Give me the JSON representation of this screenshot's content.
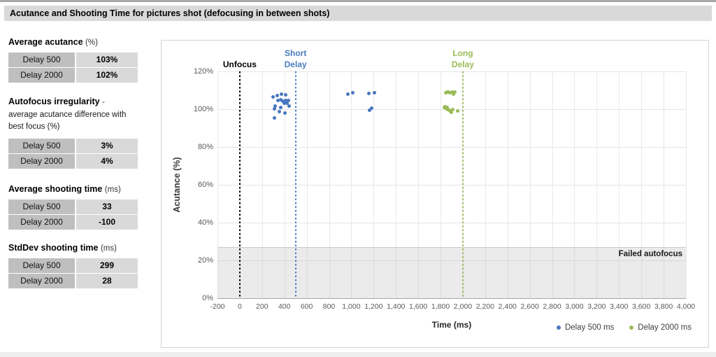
{
  "page": {
    "title": "Acutance and Shooting Time for pictures shot (defocusing in between shots)"
  },
  "sidebar": {
    "tables": [
      {
        "title": "Average acutance",
        "title_suffix": "(%)",
        "desc": "",
        "rows": [
          {
            "label": "Delay 500",
            "value": "103%"
          },
          {
            "label": "Delay 2000",
            "value": "102%"
          }
        ]
      },
      {
        "title": "Autofocus irregularity",
        "title_suffix": "-",
        "desc": "average acutance difference with best focus (%)",
        "rows": [
          {
            "label": "Delay 500",
            "value": "3%"
          },
          {
            "label": "Delay 2000",
            "value": "4%"
          }
        ]
      },
      {
        "title": "Average shooting time",
        "title_suffix": "(ms)",
        "desc": "",
        "rows": [
          {
            "label": "Delay 500",
            "value": "33"
          },
          {
            "label": "Delay 2000",
            "value": "-100"
          }
        ]
      },
      {
        "title": "StdDev shooting time",
        "title_suffix": "(ms)",
        "desc": "",
        "rows": [
          {
            "label": "Delay 500",
            "value": "299"
          },
          {
            "label": "Delay 2000",
            "value": "28"
          }
        ]
      }
    ]
  },
  "chart_data": {
    "type": "scatter",
    "xlabel": "Time (ms)",
    "ylabel": "Acutance (%)",
    "xlim": [
      -200,
      4000
    ],
    "ylim": [
      0,
      120
    ],
    "grid": true,
    "x_ticks": [
      {
        "v": -200,
        "label": "-200"
      },
      {
        "v": 0,
        "label": "0"
      },
      {
        "v": 200,
        "label": "200"
      },
      {
        "v": 400,
        "label": "400"
      },
      {
        "v": 600,
        "label": "600"
      },
      {
        "v": 800,
        "label": "800"
      },
      {
        "v": 1000,
        "label": "1,000"
      },
      {
        "v": 1200,
        "label": "1,200"
      },
      {
        "v": 1400,
        "label": "1,400"
      },
      {
        "v": 1600,
        "label": "1,600"
      },
      {
        "v": 1800,
        "label": "1,800"
      },
      {
        "v": 2000,
        "label": "2,000"
      },
      {
        "v": 2200,
        "label": "2,200"
      },
      {
        "v": 2400,
        "label": "2,400"
      },
      {
        "v": 2600,
        "label": "2,600"
      },
      {
        "v": 2800,
        "label": "2,800"
      },
      {
        "v": 3000,
        "label": "3,000"
      },
      {
        "v": 3200,
        "label": "3,200"
      },
      {
        "v": 3400,
        "label": "3,400"
      },
      {
        "v": 3600,
        "label": "3,600"
      },
      {
        "v": 3800,
        "label": "3,800"
      },
      {
        "v": 4000,
        "label": "4,000"
      }
    ],
    "y_ticks": [
      {
        "v": 0,
        "label": "0%"
      },
      {
        "v": 20,
        "label": "20%"
      },
      {
        "v": 40,
        "label": "40%"
      },
      {
        "v": 60,
        "label": "60%"
      },
      {
        "v": 80,
        "label": "80%"
      },
      {
        "v": 100,
        "label": "100%"
      },
      {
        "v": 120,
        "label": "120%"
      }
    ],
    "annotations": [
      {
        "name": "unfocus",
        "x": 0,
        "color": "#000000",
        "label_lines": [
          "Unfocus"
        ]
      },
      {
        "name": "short-delay",
        "x": 500,
        "color": "#4a7ebb",
        "label_lines": [
          "Short",
          "Delay"
        ]
      },
      {
        "name": "long-delay",
        "x": 2000,
        "color": "#9bbb59",
        "label_lines": [
          "Long",
          "Delay"
        ]
      }
    ],
    "failed_band": {
      "y_from": 0,
      "y_to": 27,
      "label": "Failed autofocus"
    },
    "legend_position": "bottom-right",
    "series": [
      {
        "name": "Delay 500 ms",
        "color": "#4877be",
        "points": [
          [
            299,
            106.4
          ],
          [
            339,
            107.1
          ],
          [
            371,
            107.8
          ],
          [
            413,
            107.6
          ],
          [
            340,
            104.5
          ],
          [
            368,
            105.0
          ],
          [
            385,
            104.2
          ],
          [
            411,
            104.8
          ],
          [
            438,
            104.6
          ],
          [
            396,
            103.1
          ],
          [
            424,
            103.3
          ],
          [
            316,
            101.5
          ],
          [
            308,
            100.3
          ],
          [
            365,
            100.9
          ],
          [
            443,
            101.7
          ],
          [
            354,
            98.7
          ],
          [
            407,
            98.1
          ],
          [
            312,
            95.2
          ],
          [
            968,
            107.8
          ],
          [
            1010,
            108.7
          ],
          [
            1158,
            108.4
          ],
          [
            1210,
            108.8
          ],
          [
            1163,
            99.4
          ],
          [
            1180,
            100.6
          ]
        ]
      },
      {
        "name": "Delay 2000 ms",
        "color": "#9bbb59",
        "points": [
          [
            1845,
            108.7
          ],
          [
            1858,
            109.0
          ],
          [
            1872,
            108.9
          ],
          [
            1886,
            108.8
          ],
          [
            1902,
            109.1
          ],
          [
            1916,
            108.1
          ],
          [
            1929,
            108.9
          ],
          [
            1833,
            100.9
          ],
          [
            1843,
            101.4
          ],
          [
            1851,
            100.3
          ],
          [
            1860,
            100.9
          ],
          [
            1867,
            99.9
          ],
          [
            1876,
            99.4
          ],
          [
            1889,
            98.7
          ],
          [
            1899,
            98.2
          ],
          [
            1908,
            99.9
          ],
          [
            1953,
            98.9
          ]
        ]
      }
    ]
  }
}
